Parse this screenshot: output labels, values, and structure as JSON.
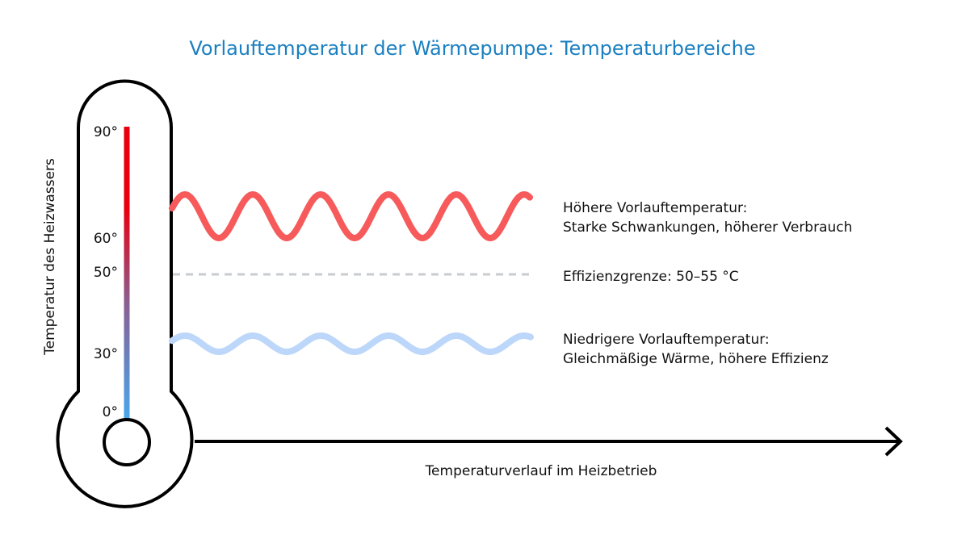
{
  "title": "Vorlauftemperatur der Wärmepumpe: Temperaturbereiche",
  "y_axis_label": "Temperatur des Heizwassers",
  "x_axis_label": "Temperaturverlauf im Heizbetrieb",
  "scale_ticks": [
    {
      "label": "90°",
      "value": 90
    },
    {
      "label": "60°",
      "value": 60
    },
    {
      "label": "50°",
      "value": 50
    },
    {
      "label": "30°",
      "value": 30
    },
    {
      "label": "0°",
      "value": 0
    }
  ],
  "high": {
    "line1": "Höhere Vorlauftemperatur:",
    "line2": "Starke Schwankungen, höherer Verbrauch"
  },
  "limit": {
    "text": "Effizienzgrenze: 50–55 °C"
  },
  "low": {
    "line1": "Niedrigere Vorlauftemperatur:",
    "line2": "Gleichmäßige Wärme, höhere Effizienz"
  },
  "colors": {
    "title": "#1a7fc1",
    "high_wave": "#f75a5a",
    "low_wave": "#bcd7fa",
    "limit_line": "#c8ccd1",
    "scale_hot": "#e8000f",
    "scale_mid": "#8a5f92",
    "scale_cold": "#47a8ee",
    "outline": "#000000"
  }
}
